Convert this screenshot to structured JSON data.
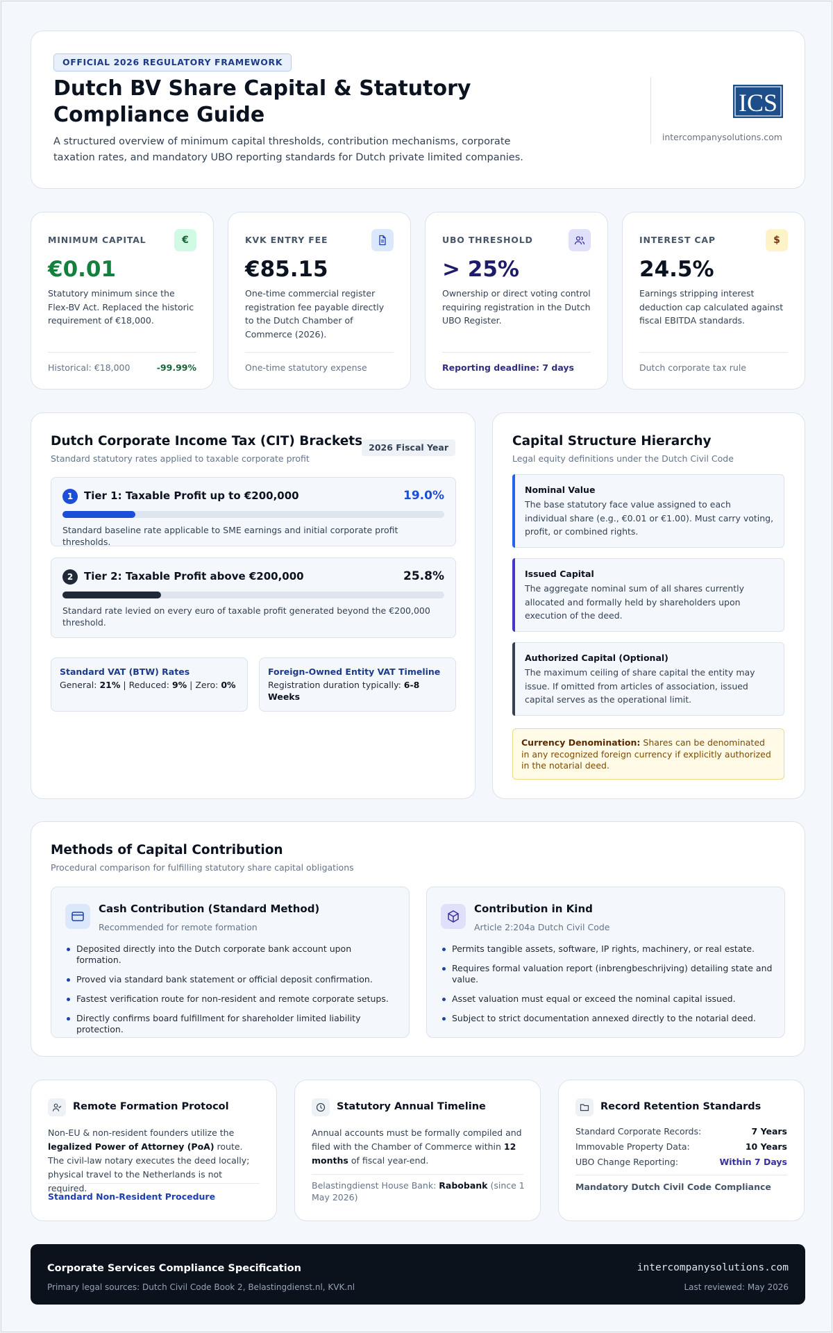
{
  "header": {
    "badge": "OFFICIAL 2026 REGULATORY FRAMEWORK",
    "title": "Dutch BV Share Capital & Statutory Compliance Guide",
    "subtitle": "A structured overview of minimum capital thresholds, contribution mechanisms, corporate taxation rates, and mandatory UBO reporting standards for Dutch private limited companies.",
    "logo_text": "ICS",
    "logo_url": "intercompanysolutions.com"
  },
  "stats": [
    {
      "label": "MINIMUM CAPITAL",
      "icon": "euro-icon",
      "icon_glyph": "€",
      "value": "€0.01",
      "desc": "Statutory minimum since the Flex-BV Act. Replaced the historic requirement of €18,000.",
      "foot": "Historical: €18,000",
      "foot_right": "-99.99%"
    },
    {
      "label": "KVK ENTRY FEE",
      "icon": "document-icon",
      "value": "€85.15",
      "desc": "One-time commercial register registration fee payable directly to the Dutch Chamber of Commerce (2026).",
      "foot": "One-time statutory expense"
    },
    {
      "label": "UBO THRESHOLD",
      "icon": "users-icon",
      "value": "> 25%",
      "desc": "Ownership or direct voting control requiring registration in the Dutch UBO Register.",
      "foot": "Reporting deadline: 7 days"
    },
    {
      "label": "INTEREST CAP",
      "icon": "dollar-icon",
      "icon_glyph": "$",
      "value": "24.5%",
      "desc": "Earnings stripping interest deduction cap calculated against fiscal EBITDA standards.",
      "foot": "Dutch corporate tax rule"
    }
  ],
  "cit": {
    "title": "Dutch Corporate Income Tax (CIT) Brackets",
    "subtitle": "Standard statutory rates applied to taxable corporate profit",
    "fiscal_year": "2026 Fiscal Year",
    "tiers": [
      {
        "num": "1",
        "title": "Tier 1: Taxable Profit up to €200,000",
        "rate": "19.0%",
        "rate_value": 19.0,
        "desc": "Standard baseline rate applicable to SME earnings and initial corporate profit thresholds."
      },
      {
        "num": "2",
        "title": "Tier 2: Taxable Profit above €200,000",
        "rate": "25.8%",
        "rate_value": 25.8,
        "desc": "Standard rate levied on every euro of taxable profit generated beyond the €200,000 threshold."
      }
    ],
    "vat": {
      "title": "Standard VAT (BTW) Rates",
      "general_label": "General:",
      "general": "21%",
      "reduced_label": "Reduced:",
      "reduced": "9%",
      "zero_label": "Zero:",
      "zero": "0%"
    },
    "foreign": {
      "title": "Foreign-Owned Entity VAT Timeline",
      "text": "Registration duration typically:",
      "duration": "6-8 Weeks"
    }
  },
  "capital": {
    "title": "Capital Structure Hierarchy",
    "subtitle": "Legal equity definitions under the Dutch Civil Code",
    "items": [
      {
        "title": "Nominal Value",
        "text": "The base statutory face value assigned to each individual share (e.g., €0.01 or €1.00). Must carry voting, profit, or combined rights.",
        "color": "#2563eb"
      },
      {
        "title": "Issued Capital",
        "text": "The aggregate nominal sum of all shares currently allocated and formally held by shareholders upon execution of the deed.",
        "color": "#4338ca"
      },
      {
        "title": "Authorized Capital (Optional)",
        "text": "The maximum ceiling of share capital the entity may issue. If omitted from articles of association, issued capital serves as the operational limit.",
        "color": "#334155"
      }
    ],
    "currency_label": "Currency Denomination:",
    "currency_text": "Shares can be denominated in any recognized foreign currency if explicitly authorized in the notarial deed."
  },
  "methods": {
    "title": "Methods of Capital Contribution",
    "subtitle": "Procedural comparison for fulfilling statutory share capital obligations",
    "cash": {
      "title": "Cash Contribution (Standard Method)",
      "subtitle": "Recommended for remote formation",
      "bullets": [
        "Deposited directly into the Dutch corporate bank account upon formation.",
        "Proved via standard bank statement or official deposit confirmation.",
        "Fastest verification route for non-resident and remote corporate setups.",
        "Directly confirms board fulfillment for shareholder limited liability protection."
      ]
    },
    "kind": {
      "title": "Contribution in Kind",
      "subtitle": "Article 2:204a Dutch Civil Code",
      "bullets": [
        "Permits tangible assets, software, IP rights, machinery, or real estate.",
        "Requires formal valuation report (inbrengbeschrijving) detailing state and value.",
        "Asset valuation must equal or exceed the nominal capital issued.",
        "Subject to strict documentation annexed directly to the notarial deed."
      ]
    }
  },
  "remote": {
    "title": "Remote Formation Protocol",
    "text_a": "Non-EU & non-resident founders utilize the",
    "text_b": "legalized Power of Attorney (PoA)",
    "text_c": "route. The civil-law notary executes the deed locally; physical travel to the Netherlands is not required.",
    "link": "Standard Non-Resident Procedure"
  },
  "timeline": {
    "title": "Statutory Annual Timeline",
    "text_a": "Annual accounts must be formally compiled and filed with the Chamber of Commerce within",
    "text_b": "12 months",
    "text_c": "of fiscal year-end.",
    "bank_label": "Belastingdienst House Bank:",
    "bank": "Rabobank",
    "bank_note": "(since 1 May 2026)"
  },
  "retention": {
    "title": "Record Retention Standards",
    "rows": [
      {
        "label": "Standard Corporate Records:",
        "value": "7 Years"
      },
      {
        "label": "Immovable Property Data:",
        "value": "10 Years"
      },
      {
        "label": "UBO Change Reporting:",
        "value": "Within 7 Days"
      }
    ],
    "footer": "Mandatory Dutch Civil Code Compliance"
  },
  "footer": {
    "title": "Corporate Services Compliance Specification",
    "sources": "Primary legal sources: Dutch Civil Code Book 2, Belastingdienst.nl, KVK.nl",
    "url": "intercompanysolutions.com",
    "reviewed": "Last reviewed: May 2026"
  },
  "colors": {
    "accent_green": "#15803d",
    "accent_navy": "#1e1b6b",
    "tier1_fill": "#1d4ed8",
    "tier2_fill": "#1f2937",
    "footer_bg": "#0c121c"
  }
}
